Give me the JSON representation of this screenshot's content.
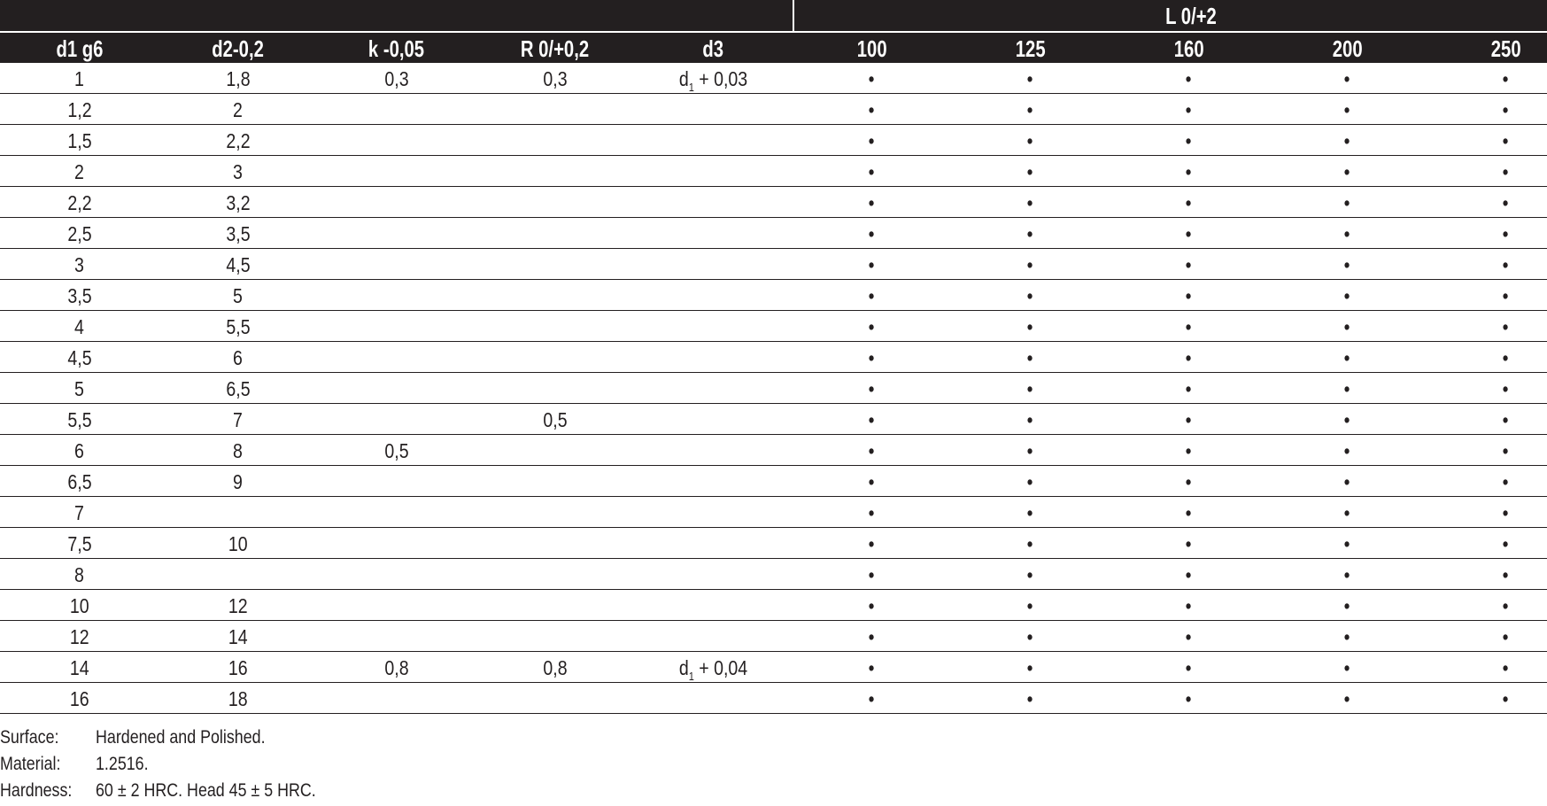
{
  "table": {
    "group_header": "L 0/+2",
    "columns": [
      "d1 g6",
      "d2-0,2",
      "k -0,05",
      "R 0/+0,2",
      "d3",
      "100",
      "125",
      "160",
      "200",
      "250"
    ],
    "rows": [
      [
        "1",
        "1,8",
        "0,3",
        "0,3",
        "d|1|+ 0,03",
        "•",
        "•",
        "•",
        "•",
        "•"
      ],
      [
        "1,2",
        "2",
        "",
        "",
        "",
        "•",
        "•",
        "•",
        "•",
        "•"
      ],
      [
        "1,5",
        "2,2",
        "",
        "",
        "",
        "•",
        "•",
        "•",
        "•",
        "•"
      ],
      [
        "2",
        "3",
        "",
        "",
        "",
        "•",
        "•",
        "•",
        "•",
        "•"
      ],
      [
        "2,2",
        "3,2",
        "",
        "",
        "",
        "•",
        "•",
        "•",
        "•",
        "•"
      ],
      [
        "2,5",
        "3,5",
        "",
        "",
        "",
        "•",
        "•",
        "•",
        "•",
        "•"
      ],
      [
        "3",
        "4,5",
        "",
        "",
        "",
        "•",
        "•",
        "•",
        "•",
        "•"
      ],
      [
        "3,5",
        "5",
        "",
        "",
        "",
        "•",
        "•",
        "•",
        "•",
        "•"
      ],
      [
        "4",
        "5,5",
        "",
        "",
        "",
        "•",
        "•",
        "•",
        "•",
        "•"
      ],
      [
        "4,5",
        "6",
        "",
        "",
        "",
        "•",
        "•",
        "•",
        "•",
        "•"
      ],
      [
        "5",
        "6,5",
        "",
        "",
        "",
        "•",
        "•",
        "•",
        "•",
        "•"
      ],
      [
        "5,5",
        "7",
        "",
        "0,5",
        "",
        "•",
        "•",
        "•",
        "•",
        "•"
      ],
      [
        "6",
        "8",
        "0,5",
        "",
        "",
        "•",
        "•",
        "•",
        "•",
        "•"
      ],
      [
        "6,5",
        "9",
        "",
        "",
        "",
        "•",
        "•",
        "•",
        "•",
        "•"
      ],
      [
        "7",
        "",
        "",
        "",
        "",
        "•",
        "•",
        "•",
        "•",
        "•"
      ],
      [
        "7,5",
        "10",
        "",
        "",
        "",
        "•",
        "•",
        "•",
        "•",
        "•"
      ],
      [
        "8",
        "",
        "",
        "",
        "",
        "•",
        "•",
        "•",
        "•",
        "•"
      ],
      [
        "10",
        "12",
        "",
        "",
        "",
        "•",
        "•",
        "•",
        "•",
        "•"
      ],
      [
        "12",
        "14",
        "",
        "",
        "",
        "•",
        "•",
        "•",
        "•",
        "•"
      ],
      [
        "14",
        "16",
        "0,8",
        "0,8",
        "d|1|+ 0,04",
        "•",
        "•",
        "•",
        "•",
        "•"
      ],
      [
        "16",
        "18",
        "",
        "",
        "",
        "•",
        "•",
        "•",
        "•",
        "•"
      ]
    ]
  },
  "notes": [
    {
      "label": "Surface:",
      "value": "Hardened and Polished."
    },
    {
      "label": "Material:",
      "value": "1.2516."
    },
    {
      "label": "Hardness:",
      "value": "60 ± 2 HRC. Head 45 ± 5 HRC."
    }
  ]
}
